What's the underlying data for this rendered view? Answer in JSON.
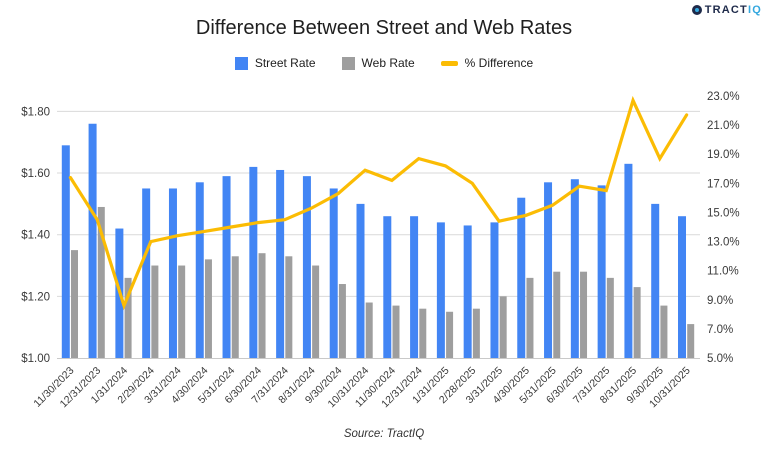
{
  "logo": {
    "prefix": "TRACT",
    "suffix": "IQ"
  },
  "title": "Difference Between Street and Web Rates",
  "source": "Source: TractIQ",
  "colors": {
    "street": "#4285F4",
    "web": "#9E9E9E",
    "diff": "#FBBC04",
    "grid": "#D9D9D9",
    "baseline": "#C9C9C9",
    "axis_text": "#3A3A3A",
    "title_text": "#1F1F1F",
    "logo_navy": "#1E2A4A",
    "logo_cyan": "#35A8DF"
  },
  "chart_data": {
    "type": "bar",
    "title": "Difference Between Street and Web Rates",
    "legend_position": "top",
    "grid": true,
    "categories": [
      "11/30/2023",
      "12/31/2023",
      "1/31/2024",
      "2/29/2024",
      "3/31/2024",
      "4/30/2024",
      "5/31/2024",
      "6/30/2024",
      "7/31/2024",
      "8/31/2024",
      "9/30/2024",
      "10/31/2024",
      "11/30/2024",
      "12/31/2024",
      "1/31/2025",
      "2/28/2025",
      "3/31/2025",
      "4/30/2025",
      "5/31/2025",
      "6/30/2025",
      "7/31/2025",
      "8/31/2025",
      "9/30/2025",
      "10/31/2025"
    ],
    "series": [
      {
        "name": "Street Rate",
        "type": "bar",
        "axis": "left",
        "color": "#4285F4",
        "values": [
          1.69,
          1.76,
          1.42,
          1.55,
          1.55,
          1.57,
          1.59,
          1.62,
          1.61,
          1.59,
          1.55,
          1.5,
          1.46,
          1.46,
          1.44,
          1.43,
          1.44,
          1.52,
          1.57,
          1.58,
          1.56,
          1.63,
          1.5,
          1.46
        ]
      },
      {
        "name": "Web Rate",
        "type": "bar",
        "axis": "left",
        "color": "#9E9E9E",
        "values": [
          1.35,
          1.49,
          1.26,
          1.3,
          1.3,
          1.32,
          1.33,
          1.34,
          1.33,
          1.3,
          1.24,
          1.18,
          1.17,
          1.16,
          1.15,
          1.16,
          1.2,
          1.26,
          1.28,
          1.28,
          1.26,
          1.23,
          1.17,
          1.11
        ]
      },
      {
        "name": "% Difference",
        "type": "line",
        "axis": "right",
        "color": "#FBBC04",
        "values": [
          17.4,
          14.5,
          8.6,
          13.0,
          13.4,
          13.7,
          14.0,
          14.3,
          14.5,
          15.3,
          16.3,
          17.9,
          17.2,
          18.7,
          18.2,
          17.0,
          14.4,
          14.8,
          15.5,
          16.8,
          16.5,
          22.7,
          18.7,
          21.7
        ]
      }
    ],
    "left_axis": {
      "min": 1.0,
      "max": 1.85,
      "tick_values": [
        1.8,
        1.6,
        1.4,
        1.2,
        1.0
      ],
      "tick_labels": [
        "$1.80",
        "$1.60",
        "$1.40",
        "$1.20",
        "$1.00"
      ]
    },
    "right_axis": {
      "min": 5,
      "max": 23,
      "tick_values": [
        23,
        21,
        19,
        17,
        15,
        13,
        11,
        9,
        7,
        5
      ],
      "tick_labels": [
        "23.0%",
        "21.0%",
        "19.0%",
        "17.0%",
        "15.0%",
        "13.0%",
        "11.0%",
        "9.0%",
        "7.0%",
        "5.0%"
      ]
    }
  }
}
